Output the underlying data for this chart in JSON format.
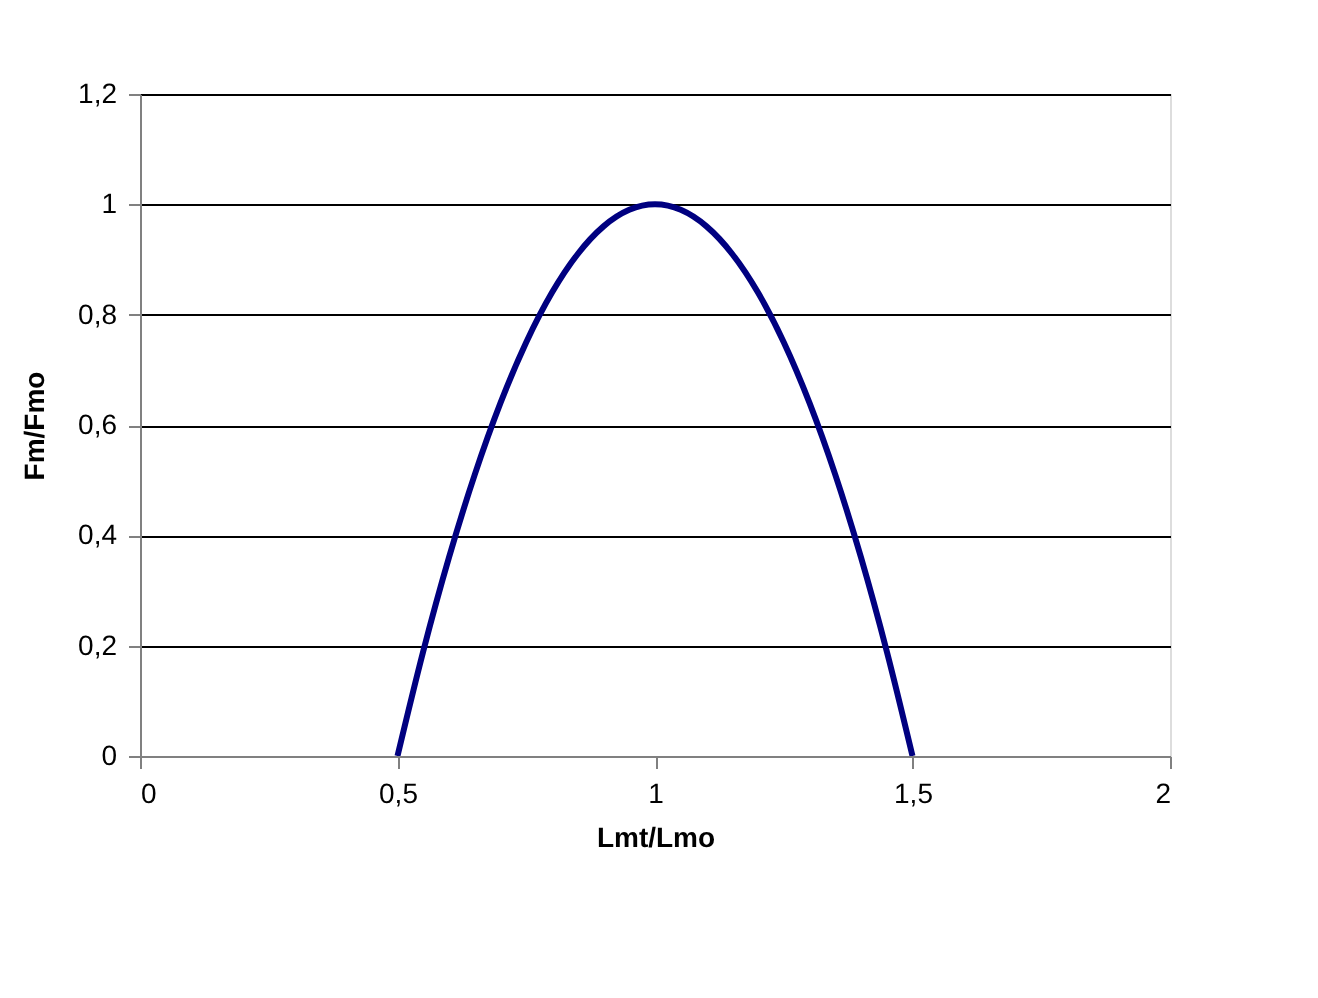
{
  "chart_data": {
    "type": "line",
    "xlabel": "Lmt/Lmo",
    "ylabel": "Fm/Fmo",
    "x": [
      0.5,
      0.55,
      0.6,
      0.65,
      0.7,
      0.75,
      0.8,
      0.85,
      0.9,
      0.95,
      1.0,
      1.05,
      1.1,
      1.15,
      1.2,
      1.25,
      1.3,
      1.35,
      1.4,
      1.45,
      1.5
    ],
    "series": [
      {
        "color": "#000080",
        "values": [
          0,
          0.19,
          0.36,
          0.51,
          0.64,
          0.75,
          0.84,
          0.91,
          0.96,
          0.99,
          1,
          0.99,
          0.96,
          0.91,
          0.84,
          0.75,
          0.64,
          0.51,
          0.36,
          0.19,
          0
        ]
      }
    ],
    "xlim": [
      0,
      2
    ],
    "xticks": [
      0,
      {
        "value": 0.5,
        "label": "0,5"
      },
      1,
      {
        "value": 1.5,
        "label": "1,5"
      },
      2
    ],
    "ylim": [
      0,
      1.2
    ],
    "yticks": [
      0,
      {
        "value": 0.2,
        "label": "0,2"
      },
      {
        "value": 0.4,
        "label": "0,4"
      },
      {
        "value": 0.6,
        "label": "0,6"
      },
      {
        "value": 0.8,
        "label": "0,8"
      },
      1,
      {
        "value": 1.2,
        "label": "1,2"
      }
    ],
    "grid": "y",
    "marker": "none",
    "line_style": "solid"
  }
}
